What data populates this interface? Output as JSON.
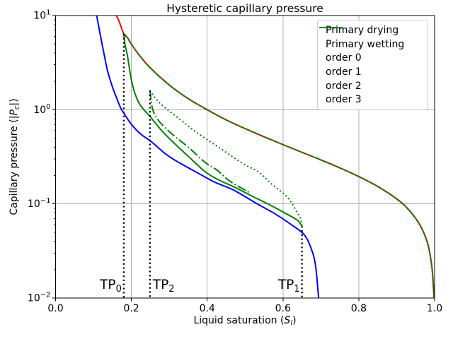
{
  "title": "Hysteretic capillary pressure",
  "axes": {
    "x": {
      "label": {
        "pre": "Liquid saturation (",
        "var": "S",
        "sub": "l",
        "post": ")"
      },
      "ticks": [
        0.0,
        0.2,
        0.4,
        0.6,
        0.8,
        1.0
      ],
      "range": [
        0.0,
        1.0
      ]
    },
    "y": {
      "scale": "log",
      "label": {
        "pre": "Capillary pressure (|",
        "var": "P",
        "sub": "c",
        "post": "|)"
      },
      "tick_exponents": [
        1,
        0,
        -1,
        -2
      ],
      "tick_base": "10",
      "range": [
        0.01,
        10
      ]
    }
  },
  "turning_points": [
    {
      "name": "TP",
      "sub": "0",
      "s": 0.18,
      "pc_top": 6.4,
      "label_side": "left"
    },
    {
      "name": "TP",
      "sub": "2",
      "s": 0.249,
      "pc_top": 1.6,
      "label_side": "right"
    },
    {
      "name": "TP",
      "sub": "1",
      "s": 0.65,
      "pc_top": 0.058,
      "label_side": "left"
    }
  ],
  "tp_line_color": "#000000",
  "chart_data": {
    "type": "line",
    "title": "Hysteretic capillary pressure",
    "xlabel": "Liquid saturation (S_l)",
    "ylabel": "Capillary pressure (|P_c|)",
    "xlim": [
      0.0,
      1.0
    ],
    "ylim": [
      0.01,
      10
    ],
    "yscale": "log",
    "grid": true,
    "grid_color": "#b0b0b0",
    "legend_position": "upper right",
    "series": [
      {
        "name": "Primary drying",
        "color": "#ff0000",
        "style": "solid",
        "width": 2,
        "points": [
          [
            0.1605,
            10
          ],
          [
            0.168,
            8.6
          ],
          [
            0.18,
            6.4
          ],
          [
            0.19,
            5.8
          ],
          [
            0.199,
            5.05
          ],
          [
            0.22,
            3.83
          ],
          [
            0.25,
            2.78
          ],
          [
            0.3,
            1.83
          ],
          [
            0.35,
            1.31
          ],
          [
            0.4,
            1.0
          ],
          [
            0.45,
            0.78
          ],
          [
            0.5,
            0.63
          ],
          [
            0.55,
            0.516
          ],
          [
            0.6,
            0.426
          ],
          [
            0.65,
            0.353
          ],
          [
            0.7,
            0.293
          ],
          [
            0.75,
            0.241
          ],
          [
            0.8,
            0.195
          ],
          [
            0.85,
            0.153
          ],
          [
            0.9,
            0.113
          ],
          [
            0.93,
            0.088
          ],
          [
            0.96,
            0.061
          ],
          [
            0.98,
            0.04
          ],
          [
            0.99,
            0.026
          ],
          [
            0.995,
            0.0173
          ],
          [
            0.9985,
            0.01
          ]
        ]
      },
      {
        "name": "Primary wetting",
        "color": "#0000ff",
        "style": "solid",
        "width": 2,
        "points": [
          [
            0.1085,
            10
          ],
          [
            0.118,
            6.2
          ],
          [
            0.128,
            3.9
          ],
          [
            0.137,
            2.6
          ],
          [
            0.15,
            1.75
          ],
          [
            0.163,
            1.27
          ],
          [
            0.172,
            1.04
          ],
          [
            0.18,
            0.92
          ],
          [
            0.2,
            0.7
          ],
          [
            0.225,
            0.55
          ],
          [
            0.252,
            0.46
          ],
          [
            0.29,
            0.34
          ],
          [
            0.32,
            0.283
          ],
          [
            0.376,
            0.212
          ],
          [
            0.42,
            0.17
          ],
          [
            0.47,
            0.14
          ],
          [
            0.532,
            0.1
          ],
          [
            0.58,
            0.078
          ],
          [
            0.62,
            0.061
          ],
          [
            0.656,
            0.047
          ],
          [
            0.675,
            0.033
          ],
          [
            0.686,
            0.022
          ],
          [
            0.694,
            0.01
          ]
        ]
      },
      {
        "name": "order 0",
        "color": "#008000",
        "style": "dashed",
        "width": 2,
        "points": [
          [
            0.18,
            6.4
          ],
          [
            0.19,
            5.8
          ],
          [
            0.199,
            5.05
          ],
          [
            0.22,
            3.83
          ],
          [
            0.25,
            2.78
          ],
          [
            0.3,
            1.83
          ],
          [
            0.35,
            1.31
          ],
          [
            0.4,
            1.0
          ],
          [
            0.45,
            0.78
          ],
          [
            0.5,
            0.63
          ],
          [
            0.55,
            0.516
          ],
          [
            0.6,
            0.426
          ],
          [
            0.65,
            0.353
          ],
          [
            0.7,
            0.293
          ],
          [
            0.75,
            0.241
          ],
          [
            0.8,
            0.195
          ],
          [
            0.85,
            0.153
          ],
          [
            0.9,
            0.113
          ],
          [
            0.93,
            0.088
          ],
          [
            0.96,
            0.061
          ],
          [
            0.98,
            0.04
          ],
          [
            0.99,
            0.026
          ],
          [
            0.995,
            0.0173
          ],
          [
            0.9985,
            0.01
          ]
        ]
      },
      {
        "name": "order 1",
        "color": "#008000",
        "style": "solid",
        "width": 2,
        "points": [
          [
            0.18,
            6.4
          ],
          [
            0.183,
            5.0
          ],
          [
            0.187,
            4.2
          ],
          [
            0.19,
            3.67
          ],
          [
            0.199,
            2.19
          ],
          [
            0.208,
            1.55
          ],
          [
            0.22,
            1.18
          ],
          [
            0.233,
            1.0
          ],
          [
            0.249,
            0.85
          ],
          [
            0.28,
            0.6
          ],
          [
            0.314,
            0.437
          ],
          [
            0.35,
            0.32
          ],
          [
            0.395,
            0.219
          ],
          [
            0.43,
            0.18
          ],
          [
            0.47,
            0.152
          ],
          [
            0.52,
            0.12
          ],
          [
            0.56,
            0.1
          ],
          [
            0.6,
            0.082
          ],
          [
            0.638,
            0.067
          ],
          [
            0.65,
            0.058
          ]
        ]
      },
      {
        "name": "order 2",
        "color": "#008000",
        "style": "dotted",
        "width": 2,
        "points": [
          [
            0.249,
            1.6
          ],
          [
            0.26,
            1.38
          ],
          [
            0.283,
            1.1
          ],
          [
            0.33,
            0.78
          ],
          [
            0.37,
            0.582
          ],
          [
            0.43,
            0.4
          ],
          [
            0.495,
            0.267
          ],
          [
            0.535,
            0.219
          ],
          [
            0.569,
            0.164
          ],
          [
            0.613,
            0.116
          ],
          [
            0.638,
            0.08
          ],
          [
            0.647,
            0.069
          ],
          [
            0.65,
            0.058
          ]
        ]
      },
      {
        "name": "order 3",
        "color": "#008000",
        "style": "dashdot",
        "width": 2,
        "points": [
          [
            0.249,
            1.6
          ],
          [
            0.254,
            1.1
          ],
          [
            0.262,
            0.88
          ],
          [
            0.28,
            0.7
          ],
          [
            0.31,
            0.54
          ],
          [
            0.35,
            0.4
          ],
          [
            0.395,
            0.275
          ],
          [
            0.426,
            0.228
          ],
          [
            0.46,
            0.174
          ],
          [
            0.5,
            0.14
          ],
          [
            0.515,
            0.13
          ]
        ]
      }
    ]
  }
}
